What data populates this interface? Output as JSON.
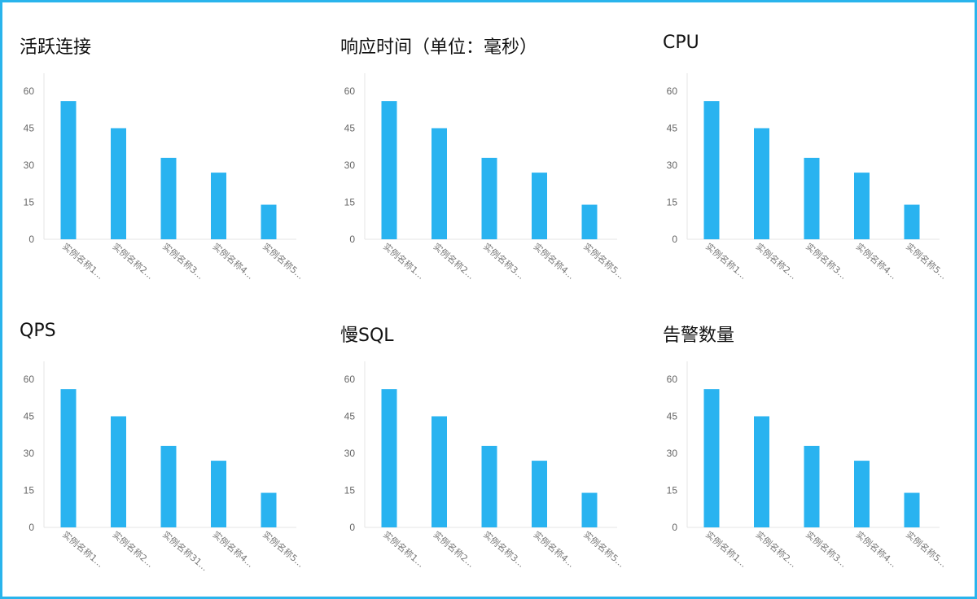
{
  "colors": {
    "frame": "#29b4ec",
    "bar": "#29b3f0",
    "axis": "#e6e6e6"
  },
  "chart_data": [
    {
      "type": "bar",
      "title": "活跃连接",
      "categories": [
        "实例名称1...",
        "实例名称2...",
        "实例名称3...",
        "实例名称4...",
        "实例名称5..."
      ],
      "values": [
        56,
        45,
        33,
        27,
        14
      ],
      "yticks": [
        0,
        15,
        30,
        45,
        60
      ],
      "ylim": [
        0,
        60
      ],
      "grid": false,
      "xlabel": "",
      "ylabel": ""
    },
    {
      "type": "bar",
      "title": "响应时间（单位：毫秒）",
      "categories": [
        "实例名称1...",
        "实例名称2...",
        "实例名称3...",
        "实例名称4...",
        "实例名称5..."
      ],
      "values": [
        56,
        45,
        33,
        27,
        14
      ],
      "yticks": [
        0,
        15,
        30,
        45,
        60
      ],
      "ylim": [
        0,
        60
      ],
      "grid": false,
      "xlabel": "",
      "ylabel": ""
    },
    {
      "type": "bar",
      "title": "CPU",
      "categories": [
        "实例名称1...",
        "实例名称2...",
        "实例名称3...",
        "实例名称4...",
        "实例名称5..."
      ],
      "values": [
        56,
        45,
        33,
        27,
        14
      ],
      "yticks": [
        0,
        15,
        30,
        45,
        60
      ],
      "ylim": [
        0,
        60
      ],
      "grid": false,
      "xlabel": "",
      "ylabel": ""
    },
    {
      "type": "bar",
      "title": "QPS",
      "categories": [
        "实例名称1...",
        "实例名称2...",
        "实例名称31...",
        "实例名称4...",
        "实例名称5..."
      ],
      "values": [
        56,
        45,
        33,
        27,
        14
      ],
      "yticks": [
        0,
        15,
        30,
        45,
        60
      ],
      "ylim": [
        0,
        60
      ],
      "grid": false,
      "xlabel": "",
      "ylabel": ""
    },
    {
      "type": "bar",
      "title": "慢SQL",
      "categories": [
        "实例名称1...",
        "实例名称2...",
        "实例名称3...",
        "实例名称4...",
        "实例名称5..."
      ],
      "values": [
        56,
        45,
        33,
        27,
        14
      ],
      "yticks": [
        0,
        15,
        30,
        45,
        60
      ],
      "ylim": [
        0,
        60
      ],
      "grid": false,
      "xlabel": "",
      "ylabel": ""
    },
    {
      "type": "bar",
      "title": "告警数量",
      "categories": [
        "实例名称1...",
        "实例名称2...",
        "实例名称3...",
        "实例名称4...",
        "实例名称5..."
      ],
      "values": [
        56,
        45,
        33,
        27,
        14
      ],
      "yticks": [
        0,
        15,
        30,
        45,
        60
      ],
      "ylim": [
        0,
        60
      ],
      "grid": false,
      "xlabel": "",
      "ylabel": ""
    }
  ]
}
